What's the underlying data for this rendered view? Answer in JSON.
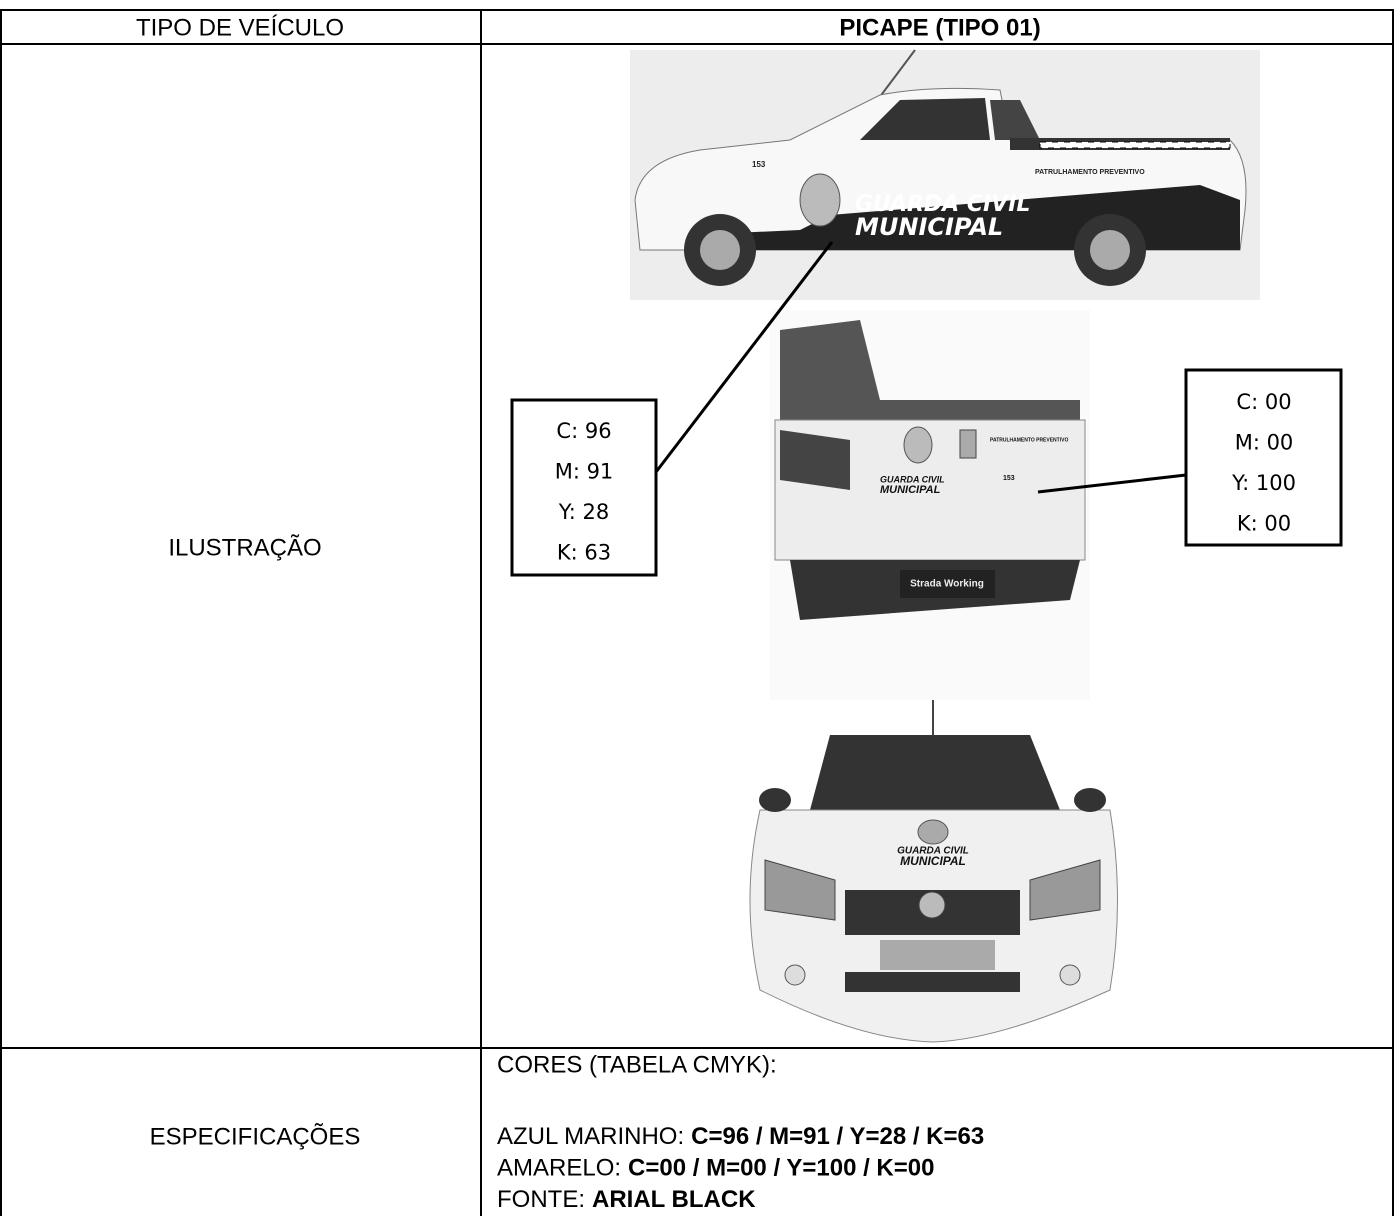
{
  "header": {
    "label": "TIPO DE VEÍCULO",
    "value": "PICAPE (TIPO 01)"
  },
  "illustration": {
    "label": "ILUSTRAÇÃO",
    "callouts": [
      {
        "lines": [
          "C: 96",
          "M: 91",
          "Y: 28",
          "K: 63"
        ]
      },
      {
        "lines": [
          "C: 00",
          "M: 00",
          "Y: 100",
          "K: 00"
        ]
      }
    ],
    "decals": {
      "line1": "GUARDA CIVIL",
      "line2": "MUNICIPAL",
      "badge": "PATRULHAMENTO PREVENTIVO",
      "number": "153",
      "plate": "Strada Working"
    }
  },
  "specifications": {
    "label": "ESPECIFICAÇÕES",
    "heading": "CORES (TABELA CMYK):",
    "items": [
      {
        "name": "AZUL MARINHO:",
        "value": "C=96 / M=91 / Y=28 / K=63"
      },
      {
        "name": "AMARELO:",
        "value": "C=00 / M=00 / Y=100 / K=00"
      },
      {
        "name": "FONTE:",
        "value": "ARIAL BLACK"
      }
    ]
  }
}
